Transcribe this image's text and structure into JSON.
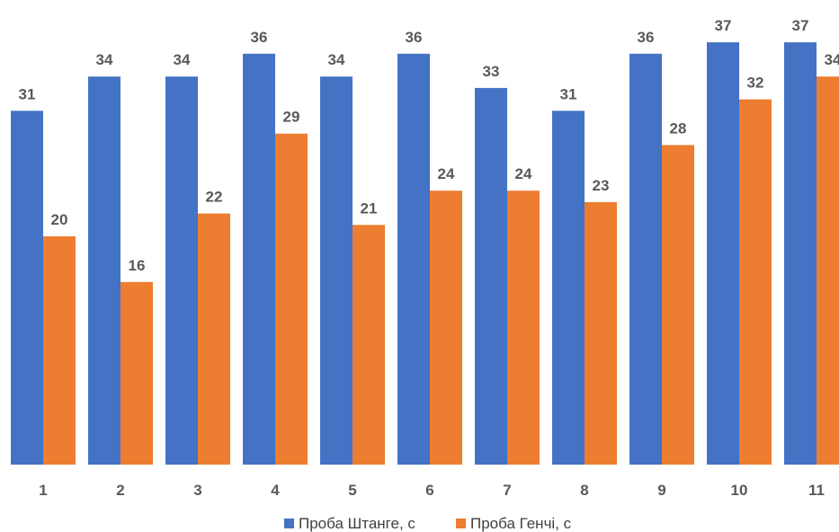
{
  "chart_data": {
    "type": "bar",
    "categories": [
      "1",
      "2",
      "3",
      "4",
      "5",
      "6",
      "7",
      "8",
      "9",
      "10",
      "11"
    ],
    "series": [
      {
        "name": "Проба Штанге, с",
        "color": "#4472C4",
        "values": [
          31,
          34,
          34,
          36,
          34,
          36,
          33,
          31,
          36,
          37,
          37
        ]
      },
      {
        "name": "Проба Генчі, с",
        "color": "#ED7D31",
        "values": [
          20,
          16,
          22,
          29,
          21,
          24,
          24,
          23,
          28,
          32,
          34
        ]
      }
    ],
    "title": "",
    "xlabel": "",
    "ylabel": "",
    "ylim": [
      0,
      40
    ],
    "grid": false,
    "data_labels": true,
    "legend_position": "bottom"
  }
}
